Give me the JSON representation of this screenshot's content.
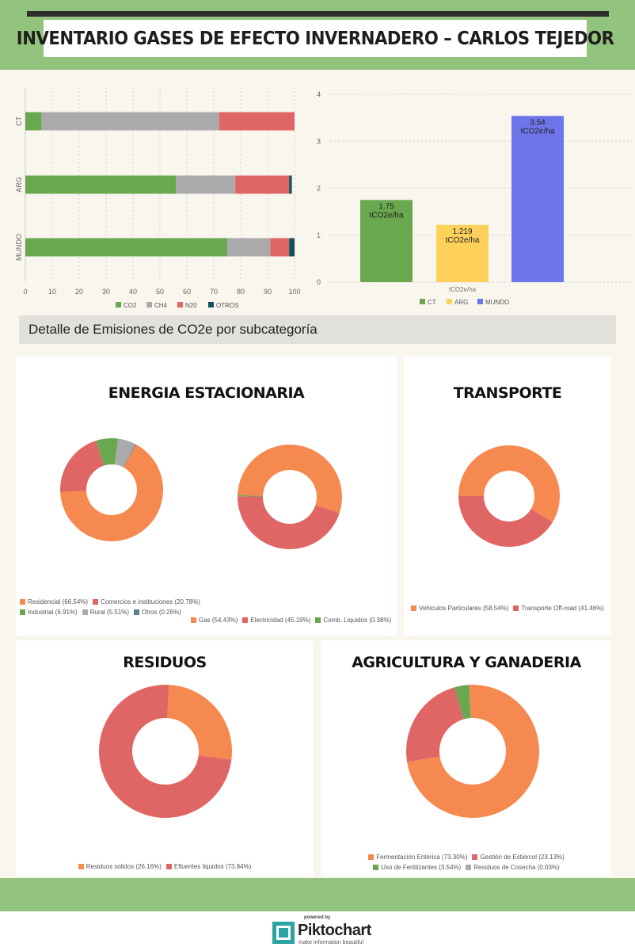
{
  "header": {
    "title": "INVENTARIO GASES DE EFECTO INVERNADERO – CARLOS TEJEDOR"
  },
  "section": {
    "title": "Detalle de Emisiones de CO2e por subcategoría"
  },
  "colors": {
    "green": "#6aa84f",
    "gray": "#aaaaaa",
    "red": "#e06666",
    "teal": "#134f5c",
    "orange": "#f6894f",
    "yellow": "#ffd15b",
    "blue": "#6d75ea",
    "slate": "#5f7f8a",
    "band": "#92c47d"
  },
  "footer": {
    "powered": "powered by",
    "brand": "Piktochart",
    "tagline": "make information beautiful"
  },
  "chart_data": [
    {
      "id": "gases-share",
      "type": "bar",
      "orientation": "horizontal",
      "stacked": true,
      "categories": [
        "CT",
        "ARG",
        "MUNDO"
      ],
      "series": [
        {
          "name": "CO2",
          "color": "#6aa84f",
          "values": [
            6,
            56,
            75
          ]
        },
        {
          "name": "CH4",
          "color": "#aaaaaa",
          "values": [
            66,
            22,
            16
          ]
        },
        {
          "name": "N20",
          "color": "#e06666",
          "values": [
            28,
            20,
            7
          ]
        },
        {
          "name": "OTROS",
          "color": "#134f5c",
          "values": [
            0,
            1,
            2
          ]
        }
      ],
      "xlim": [
        0,
        100
      ],
      "xticks": [
        "0",
        "10",
        "20",
        "30",
        "40",
        "50",
        "60",
        "70",
        "80",
        "90",
        "100"
      ],
      "grid": true,
      "legend_position": "bottom"
    },
    {
      "id": "emissions-per-ha",
      "type": "bar",
      "categories": [
        "CT",
        "ARG",
        "MUNDO"
      ],
      "values": [
        1.75,
        1.219,
        3.54
      ],
      "value_labels": [
        "1.75",
        "1.219",
        "3.54"
      ],
      "unit_labels": [
        "tCO2e/ha",
        "tCO2e/ha",
        "tCO2e/ha"
      ],
      "colors": [
        "#6aa84f",
        "#ffd15b",
        "#6d75ea"
      ],
      "xlabel": "tCO2e/ha",
      "ylim": [
        0,
        4
      ],
      "yticks": [
        "0",
        "1",
        "2",
        "3",
        "4"
      ],
      "grid": true,
      "legend_position": "bottom"
    },
    {
      "id": "energia-sector",
      "type": "pie",
      "donut": true,
      "card_title": "ENERGIA ESTACIONARIA",
      "labels": [
        "Residencial (66.54%)",
        "Comercios e instituciones (20.78%)",
        "Industrial (6.91%)",
        "Rural (5.51%)",
        "Otros (0.26%)"
      ],
      "values": [
        66.54,
        20.78,
        6.91,
        5.51,
        0.26
      ],
      "colors": [
        "#f6894f",
        "#e06666",
        "#6aa84f",
        "#aaaaaa",
        "#5f7f8a"
      ]
    },
    {
      "id": "energia-fuente",
      "type": "pie",
      "donut": true,
      "labels": [
        "Gas (54.43%)",
        "Electricidad (45.19%)",
        "Comb. Liquidos (0.38%)"
      ],
      "values": [
        54.43,
        45.19,
        0.38
      ],
      "colors": [
        "#f6894f",
        "#e06666",
        "#6aa84f"
      ]
    },
    {
      "id": "transporte",
      "type": "pie",
      "donut": true,
      "card_title": "TRANSPORTE",
      "labels": [
        "Vehiculos Particulares (58.54%)",
        "Transporte Off-road (41.46%)"
      ],
      "values": [
        58.54,
        41.46
      ],
      "colors": [
        "#f6894f",
        "#e06666"
      ]
    },
    {
      "id": "residuos",
      "type": "pie",
      "donut": true,
      "card_title": "RESIDUOS",
      "labels": [
        "Residuos solidos (26.16%)",
        "Efluentes liquidos (73.84%)"
      ],
      "values": [
        26.16,
        73.84
      ],
      "colors": [
        "#f6894f",
        "#e06666"
      ]
    },
    {
      "id": "agricultura",
      "type": "pie",
      "donut": true,
      "card_title": "AGRICULTURA Y GANADERIA",
      "labels": [
        "Fermentación Entérica (73.30%)",
        "Gestión de Estiércol (23.13%)",
        "Uso de Fertilizantes (3.54%)",
        "Residuos de Cosecha (0.03%)"
      ],
      "values": [
        73.3,
        23.13,
        3.54,
        0.03
      ],
      "colors": [
        "#f6894f",
        "#e06666",
        "#6aa84f",
        "#aaaaaa"
      ]
    }
  ]
}
